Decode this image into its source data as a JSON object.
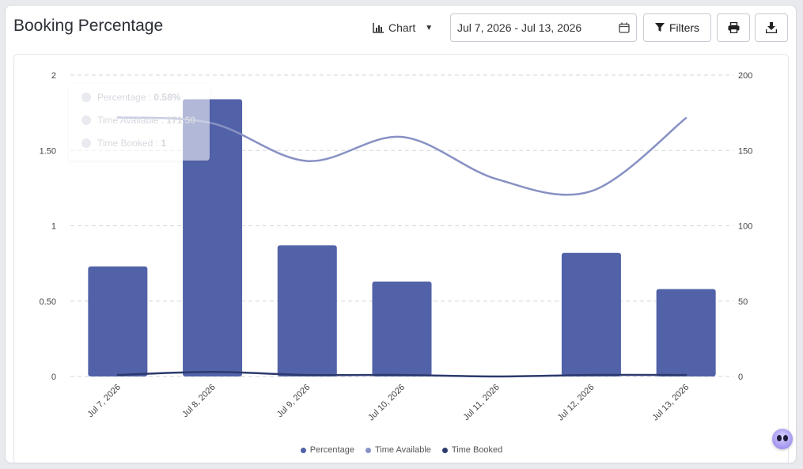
{
  "header": {
    "title": "Booking Percentage",
    "view_label": "Chart",
    "date_range": "Jul 7, 2026 - Jul 13, 2026",
    "filters_label": "Filters"
  },
  "icons": {
    "view": "bar-chart-icon",
    "caret": "caret-down-icon",
    "calendar": "calendar-icon",
    "filter": "funnel-icon",
    "print": "printer-icon",
    "download": "download-icon",
    "assistant": "assistant-bot-icon"
  },
  "tooltip": {
    "percentage_label": "Percentage : ",
    "percentage_value": "0.58%",
    "available_label": "Time Available : ",
    "available_value": "171.50",
    "booked_label": "Time Booked : ",
    "booked_value": "1"
  },
  "chart_data": {
    "type": "bar",
    "title": "Booking Percentage",
    "categories": [
      "Jul 7, 2026",
      "Jul 8, 2026",
      "Jul 9, 2026",
      "Jul 10, 2026",
      "Jul 11, 2026",
      "Jul 12, 2026",
      "Jul 13, 2026"
    ],
    "series": [
      {
        "name": "Percentage",
        "type": "bar",
        "axis": "left",
        "color": "#5262a8",
        "values": [
          0.73,
          1.84,
          0.87,
          0.63,
          0,
          0.82,
          0.58
        ]
      },
      {
        "name": "Time Available",
        "type": "line",
        "axis": "right",
        "color": "#8791c4",
        "values": [
          172,
          168,
          143,
          159,
          131,
          123,
          171.5
        ]
      },
      {
        "name": "Time Booked",
        "type": "line",
        "axis": "right",
        "color": "#2d3a6e",
        "values": [
          1,
          3,
          1,
          1,
          0,
          1,
          1
        ]
      }
    ],
    "left_axis": {
      "ticks": [
        "0",
        "0.50",
        "1",
        "1.50",
        "2"
      ],
      "ylim": [
        0,
        2
      ]
    },
    "right_axis": {
      "ticks": [
        "0",
        "50",
        "100",
        "150",
        "200"
      ],
      "ylim": [
        0,
        200
      ]
    },
    "grid": true,
    "legend": "bottom"
  }
}
